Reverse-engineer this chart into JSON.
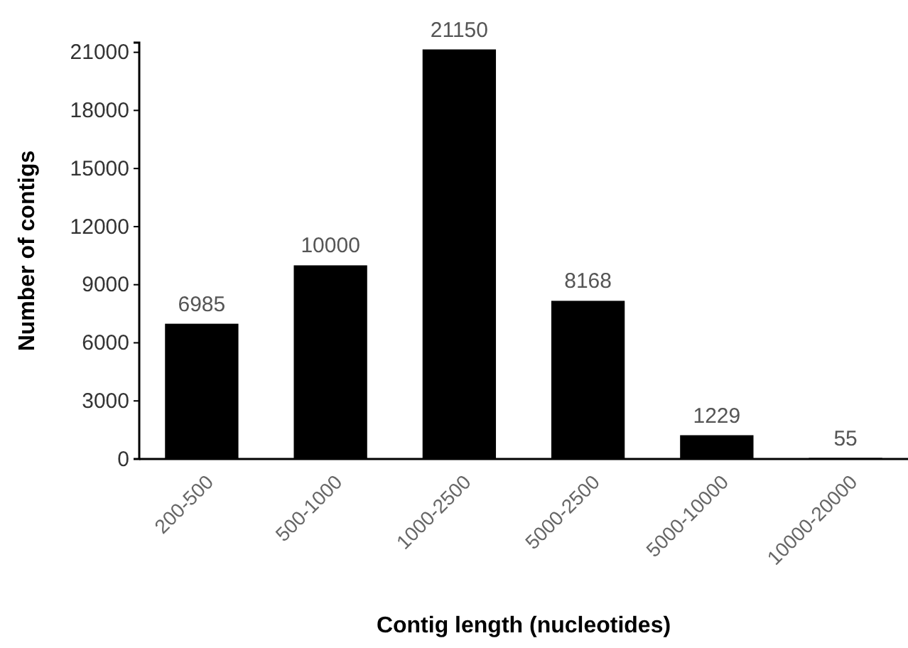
{
  "chart_data": {
    "type": "bar",
    "xlabel": "Contig length (nucleotides)",
    "ylabel": "Number of contigs",
    "categories": [
      "200-500",
      "500-1000",
      "1000-2500",
      "5000-2500",
      "5000-10000",
      "10000-20000"
    ],
    "values": [
      6985,
      10000,
      21150,
      8168,
      1229,
      55
    ],
    "color": "#000000",
    "ylim": [
      0,
      21500
    ],
    "yticks": [
      0,
      3000,
      6000,
      9000,
      12000,
      15000,
      18000,
      21000
    ],
    "grid": false,
    "data_labels": true
  }
}
